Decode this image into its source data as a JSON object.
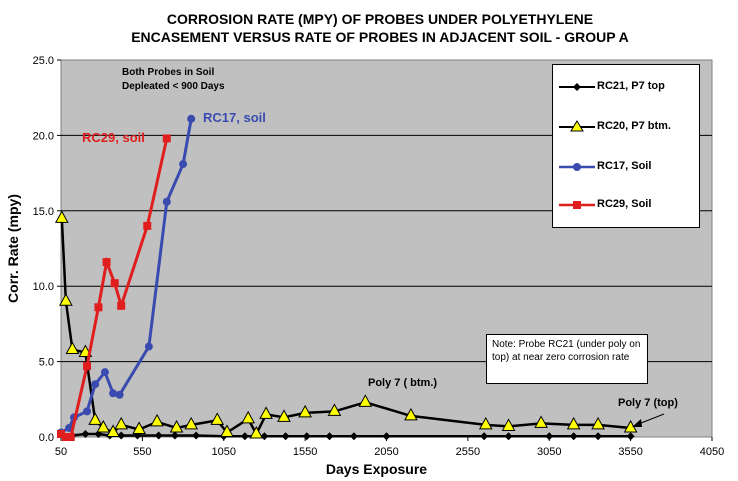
{
  "chart_data": {
    "type": "line",
    "title": [
      "CORROSION RATE (MPY) OF PROBES UNDER POLYETHYLENE",
      "ENCASEMENT VERSUS RATE OF PROBES IN ADJACENT SOIL - GROUP A"
    ],
    "xlabel": "Days Exposure",
    "ylabel": "Corr. Rate (mpy)",
    "xlim": [
      50,
      4050
    ],
    "ylim": [
      0,
      25
    ],
    "xticks": [
      "50",
      "550",
      "1050",
      "1550",
      "2050",
      "2550",
      "3050",
      "3550",
      "4050"
    ],
    "yticks": [
      "0.0",
      "5.0",
      "10.0",
      "15.0",
      "20.0",
      "25.0"
    ],
    "grid": true,
    "legend_position": "top-right",
    "series": [
      {
        "name": "RC21, P7 top",
        "color": "#000000",
        "marker": "diamond",
        "x": [
          50,
          120,
          200,
          280,
          350,
          420,
          520,
          650,
          750,
          880,
          1050,
          1180,
          1300,
          1430,
          1560,
          1700,
          1850,
          2050,
          2650,
          2800,
          3050,
          3200,
          3350,
          3550
        ],
        "y": [
          0.2,
          0.1,
          0.2,
          0.2,
          0.1,
          0.1,
          0.1,
          0.1,
          0.1,
          0.1,
          0.05,
          0.05,
          0.05,
          0.05,
          0.05,
          0.05,
          0.05,
          0.05,
          0.05,
          0.05,
          0.05,
          0.05,
          0.05,
          0.05
        ]
      },
      {
        "name": "RC20, P7 btm.",
        "color": "#000000",
        "marker": "triangle",
        "x": [
          55,
          80,
          120,
          200,
          260,
          310,
          370,
          420,
          530,
          640,
          760,
          850,
          1010,
          1070,
          1200,
          1250,
          1310,
          1420,
          1550,
          1730,
          1920,
          2200,
          2660,
          2800,
          3000,
          3200,
          3350,
          3550
        ],
        "y": [
          14.5,
          9.0,
          5.8,
          5.6,
          1.1,
          0.6,
          0.3,
          0.8,
          0.5,
          1.0,
          0.6,
          0.8,
          1.1,
          0.3,
          1.2,
          0.2,
          1.5,
          1.3,
          1.6,
          1.7,
          2.3,
          1.4,
          0.8,
          0.7,
          0.9,
          0.8,
          0.8,
          0.6
        ]
      },
      {
        "name": "RC17, Soil",
        "color": "#3a4bb0",
        "marker": "circle",
        "x": [
          50,
          100,
          130,
          210,
          260,
          320,
          370,
          410,
          590,
          700,
          800,
          850
        ],
        "y": [
          0.3,
          0.6,
          1.3,
          1.7,
          3.5,
          4.3,
          2.9,
          2.8,
          6.0,
          15.6,
          18.1,
          21.1
        ],
        "annotation": "RC17, soil"
      },
      {
        "name": "RC29, Soil",
        "color": "#e01e1e",
        "marker": "square",
        "x": [
          50,
          80,
          110,
          210,
          280,
          330,
          380,
          420,
          580,
          700
        ],
        "y": [
          0.2,
          0.0,
          0.0,
          4.7,
          8.6,
          11.6,
          10.2,
          8.7,
          14.0,
          19.8
        ],
        "annotation": "RC29, soil"
      }
    ],
    "annotations": {
      "top_left": [
        "Both Probes in Soil",
        "Depleated < 900 Days"
      ],
      "note": "Note:  Probe RC21 (under poly on top)  at near zero corrosion rate",
      "poly7_btm": "Poly 7 ( btm.)",
      "poly7_top": "Poly 7 (top)"
    }
  }
}
